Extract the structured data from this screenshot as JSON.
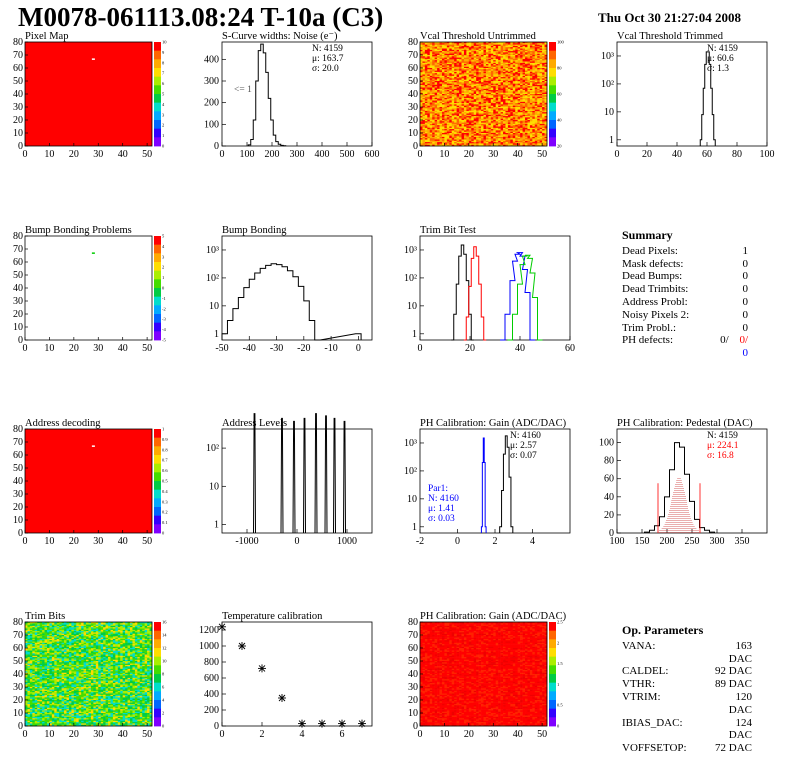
{
  "header": {
    "title": "M0078-061113.08:24 T-10a (C3)",
    "date": "Thu Oct 30 21:27:04 2008"
  },
  "colors": {
    "red": "#ff0000",
    "blue": "#0000ff",
    "black": "#000000",
    "green": "#00cc00",
    "hatch": "#cc3333"
  },
  "chart_data": [
    {
      "id": "pixel-map",
      "type": "heatmap",
      "title": "Pixel Map",
      "xlim": [
        0,
        52
      ],
      "ylim": [
        0,
        80
      ],
      "xticks": [
        0,
        10,
        20,
        30,
        40,
        50
      ],
      "yticks": [
        0,
        10,
        20,
        30,
        40,
        50,
        60,
        70,
        80
      ],
      "zticks": [
        "0",
        "1",
        "2",
        "3",
        "4",
        "5",
        "6",
        "7",
        "8",
        "9",
        "10"
      ],
      "fill": "uniform-red",
      "marks": [
        {
          "x": 28,
          "y": 67,
          "color": "#ffffff"
        }
      ]
    },
    {
      "id": "scurve-widths",
      "type": "line",
      "title": "S-Curve widths: Noise (e⁻)",
      "xlim": [
        0,
        600
      ],
      "ylim": [
        0,
        480
      ],
      "xticks": [
        0,
        100,
        200,
        300,
        400,
        500,
        600
      ],
      "yticks": [
        0,
        100,
        200,
        300,
        400
      ],
      "stats": [
        "N: 4159",
        "μ: 163.7",
        "σ: 20.0"
      ],
      "note": "<= 1",
      "x": [
        110,
        120,
        130,
        140,
        150,
        160,
        170,
        180,
        190,
        200,
        210,
        220,
        230,
        240,
        250
      ],
      "y": [
        5,
        30,
        120,
        300,
        440,
        470,
        430,
        340,
        220,
        120,
        50,
        20,
        8,
        3,
        1
      ]
    },
    {
      "id": "vcal-untrimmed",
      "type": "heatmap",
      "title": "Vcal Threshold Untrimmed",
      "xlim": [
        0,
        52
      ],
      "ylim": [
        0,
        80
      ],
      "xticks": [
        0,
        10,
        20,
        30,
        40,
        50
      ],
      "yticks": [
        0,
        10,
        20,
        30,
        40,
        50,
        60,
        70,
        80
      ],
      "zticks": [
        "20",
        "40",
        "60",
        "80",
        "100"
      ],
      "fill": "noise-orange"
    },
    {
      "id": "vcal-trimmed",
      "type": "line",
      "title": "Vcal Threshold Trimmed",
      "log": true,
      "xlim": [
        0,
        100
      ],
      "xticks": [
        0,
        20,
        40,
        60,
        80,
        100
      ],
      "yticks": [
        "1",
        "10",
        "10²",
        "10³"
      ],
      "stats": [
        "N: 4159",
        "μ: 60.6",
        "σ: 1.3"
      ],
      "x": [
        56,
        57,
        58,
        59,
        60,
        61,
        62,
        63,
        64,
        65
      ],
      "y": [
        1,
        8,
        70,
        500,
        1400,
        1400,
        500,
        70,
        8,
        1
      ]
    },
    {
      "id": "bump-bonding-problems",
      "type": "heatmap",
      "title": "Bump Bonding Problems",
      "xlim": [
        0,
        52
      ],
      "ylim": [
        0,
        80
      ],
      "xticks": [
        0,
        10,
        20,
        30,
        40,
        50
      ],
      "yticks": [
        0,
        10,
        20,
        30,
        40,
        50,
        60,
        70,
        80
      ],
      "zticks": [
        "-5",
        "-4",
        "-3",
        "-2",
        "-1",
        "0",
        "1",
        "2",
        "3",
        "4",
        "5"
      ],
      "fill": "white",
      "marks": [
        {
          "x": 28,
          "y": 67,
          "color": "#00cc00"
        }
      ]
    },
    {
      "id": "bump-bonding",
      "type": "line",
      "title": "Bump Bonding",
      "log": true,
      "xlim": [
        -50,
        5
      ],
      "xticks": [
        -50,
        -40,
        -30,
        -20,
        -10,
        0
      ],
      "yticks": [
        "1",
        "10",
        "10²",
        "10³"
      ],
      "x": [
        -49,
        -47,
        -45,
        -43,
        -41,
        -39,
        -37,
        -35,
        -33,
        -31,
        -29,
        -27,
        -25,
        -23,
        -21,
        -19,
        -17,
        -15,
        0
      ],
      "y": [
        1,
        3,
        8,
        20,
        45,
        90,
        150,
        220,
        280,
        320,
        300,
        250,
        180,
        110,
        50,
        15,
        3,
        0,
        1
      ]
    },
    {
      "id": "trim-bit-test",
      "type": "line",
      "title": "Trim Bit Test",
      "log": true,
      "xlim": [
        0,
        60
      ],
      "xticks": [
        0,
        20,
        40,
        60
      ],
      "yticks": [
        "1",
        "10",
        "10²",
        "10³"
      ],
      "series": [
        {
          "color": "#000000",
          "x": [
            13,
            14,
            15,
            16,
            17,
            18,
            19,
            20,
            21
          ],
          "y": [
            0,
            5,
            60,
            600,
            1500,
            700,
            80,
            5,
            0
          ]
        },
        {
          "color": "#ff0000",
          "x": [
            18,
            19,
            20,
            21,
            22,
            23,
            24,
            25,
            26
          ],
          "y": [
            0,
            4,
            50,
            500,
            1300,
            600,
            60,
            4,
            0
          ]
        },
        {
          "color": "#0000ff",
          "x": [
            33,
            35,
            37,
            38,
            39,
            40,
            41,
            42,
            43,
            45
          ],
          "y": [
            0,
            5,
            80,
            400,
            700,
            800,
            600,
            200,
            30,
            0
          ]
        },
        {
          "color": "#00cc00",
          "x": [
            36,
            38,
            40,
            41,
            42,
            43,
            44,
            45,
            46,
            48
          ],
          "y": [
            0,
            5,
            60,
            300,
            600,
            650,
            500,
            150,
            20,
            0
          ]
        }
      ]
    },
    {
      "id": "address-decoding",
      "type": "heatmap",
      "title": "Address decoding",
      "xlim": [
        0,
        52
      ],
      "ylim": [
        0,
        80
      ],
      "xticks": [
        0,
        10,
        20,
        30,
        40,
        50
      ],
      "yticks": [
        0,
        10,
        20,
        30,
        40,
        50,
        60,
        70,
        80
      ],
      "zticks": [
        "0",
        "0.1",
        "0.2",
        "0.3",
        "0.4",
        "0.5",
        "0.6",
        "0.7",
        "0.8",
        "0.9",
        "1"
      ],
      "fill": "uniform-red",
      "marks": [
        {
          "x": 28,
          "y": 67,
          "color": "#ffffff"
        }
      ]
    },
    {
      "id": "address-levels",
      "type": "bar",
      "title": "Address Levels",
      "log": true,
      "xlim": [
        -1500,
        1500
      ],
      "xticks": [
        -1000,
        0,
        1000
      ],
      "yticks": [
        "1",
        "10",
        "10²"
      ],
      "peaks": [
        -850,
        -300,
        -60,
        150,
        380,
        580,
        750,
        950
      ],
      "peak_heights": [
        800,
        600,
        500,
        600,
        800,
        700,
        600,
        500
      ]
    },
    {
      "id": "ph-gain",
      "type": "line",
      "title": "PH Calibration: Gain (ADC/DAC)",
      "log": true,
      "xlim": [
        -2,
        6
      ],
      "xticks": [
        -2,
        0,
        2,
        4
      ],
      "yticks": [
        "1",
        "10",
        "10²",
        "10³"
      ],
      "stats": [
        "N: 4160",
        "μ: 2.57",
        "σ: 0.07"
      ],
      "stats2": [
        "Par1:",
        "N: 4160",
        "μ: 1.41",
        "σ: 0.03"
      ],
      "series": [
        {
          "color": "#000000",
          "x": [
            2.3,
            2.4,
            2.5,
            2.6,
            2.7,
            2.8,
            2.9
          ],
          "y": [
            1,
            20,
            400,
            1800,
            700,
            60,
            1
          ]
        },
        {
          "color": "#0000ff",
          "x": [
            1.3,
            1.35,
            1.4,
            1.45,
            1.5
          ],
          "y": [
            1,
            200,
            1500,
            200,
            1
          ]
        }
      ]
    },
    {
      "id": "ph-pedestal",
      "type": "line",
      "title": "PH Calibration: Pedestal (DAC)",
      "xlim": [
        100,
        400
      ],
      "ylim": [
        0,
        115
      ],
      "xticks": [
        100,
        150,
        200,
        250,
        300,
        350
      ],
      "yticks": [
        0,
        20,
        40,
        60,
        80,
        100
      ],
      "stats": [
        "N: 4159",
        "μ: 224.1",
        "σ: 16.8"
      ],
      "x": [
        160,
        170,
        180,
        190,
        200,
        210,
        220,
        230,
        240,
        250,
        260,
        270,
        280,
        290
      ],
      "y": [
        1,
        3,
        8,
        18,
        40,
        70,
        100,
        95,
        65,
        35,
        15,
        6,
        3,
        1
      ],
      "fit_lines": [
        182,
        266
      ]
    },
    {
      "id": "trim-bits",
      "type": "heatmap",
      "title": "Trim Bits",
      "xlim": [
        0,
        52
      ],
      "ylim": [
        0,
        80
      ],
      "xticks": [
        0,
        10,
        20,
        30,
        40,
        50
      ],
      "yticks": [
        0,
        10,
        20,
        30,
        40,
        50,
        60,
        70,
        80
      ],
      "zticks": [
        "0",
        "2",
        "4",
        "6",
        "8",
        "10",
        "12",
        "14",
        "16"
      ],
      "fill": "noise-green"
    },
    {
      "id": "temperature-calibration",
      "type": "scatter",
      "title": "Temperature calibration",
      "xlim": [
        0,
        7.5
      ],
      "ylim": [
        0,
        1300
      ],
      "xticks": [
        0,
        2,
        4,
        6
      ],
      "yticks": [
        0,
        200,
        400,
        600,
        800,
        1000,
        1200
      ],
      "x": [
        0,
        1,
        2,
        3,
        4,
        5,
        6,
        7
      ],
      "y": [
        1240,
        1000,
        720,
        350,
        30,
        30,
        30,
        30
      ]
    },
    {
      "id": "ph-gain-map",
      "type": "heatmap",
      "title": "PH Calibration: Gain (ADC/DAC)",
      "xlim": [
        0,
        52
      ],
      "ylim": [
        0,
        80
      ],
      "xticks": [
        0,
        10,
        20,
        30,
        40,
        50
      ],
      "yticks": [
        0,
        10,
        20,
        30,
        40,
        50,
        60,
        70,
        80
      ],
      "zticks": [
        "0",
        "0.5",
        "1",
        "1.5",
        "2",
        "2.5"
      ],
      "fill": "noise-red"
    }
  ],
  "summary": {
    "title": "Summary",
    "rows": [
      {
        "label": "Dead Pixels:",
        "value": "1"
      },
      {
        "label": "Mask defects:",
        "value": "0"
      },
      {
        "label": "Dead Bumps:",
        "value": "0"
      },
      {
        "label": "Dead Trimbits:",
        "value": "0"
      },
      {
        "label": "Address Probl:",
        "value": "0"
      },
      {
        "label": "Noisy Pixels 2:",
        "value": "0"
      },
      {
        "label": "Trim Probl.:",
        "value": "0"
      }
    ],
    "ph_defects": {
      "label": "PH defects:",
      "a": "0/",
      "b": "0/",
      "c": "0"
    }
  },
  "op_params": {
    "title": "Op. Parameters",
    "rows": [
      {
        "label": "VANA:",
        "value": "163 DAC"
      },
      {
        "label": "CALDEL:",
        "value": "92 DAC"
      },
      {
        "label": "VTHR:",
        "value": "89 DAC"
      },
      {
        "label": "VTRIM:",
        "value": "120 DAC"
      },
      {
        "label": "IBIAS_DAC:",
        "value": "124 DAC"
      },
      {
        "label": "VOFFSETOP:",
        "value": "72 DAC"
      }
    ]
  }
}
